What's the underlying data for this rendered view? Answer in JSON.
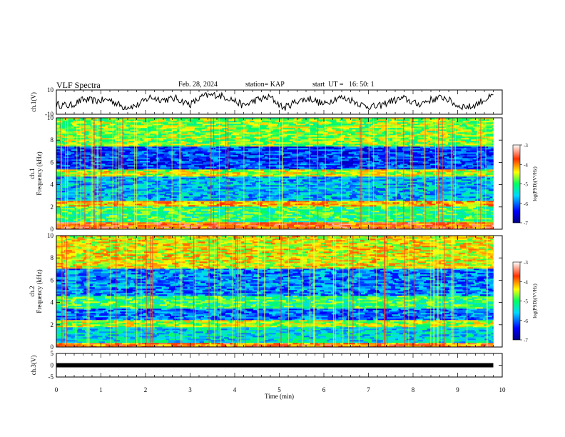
{
  "header": {
    "title": "VLF Spectra",
    "date": "Feb. 28, 2024",
    "station": "station= KAP",
    "start": "start  UT =   16: 50: 1"
  },
  "chart_data": [
    {
      "id": "ch1-waveform",
      "type": "line",
      "ylabel": "ch.1(V)",
      "ylim": [
        -10,
        10
      ],
      "yticks": [
        "10",
        "-10"
      ],
      "x_range_min": [
        0,
        9.8
      ],
      "trace_color": "#000000",
      "note_values_approx": true,
      "series": [
        {
          "x": [
            0,
            0.3,
            0.6,
            0.9,
            1.2,
            1.5,
            1.8,
            2.1,
            2.4,
            2.7,
            3.0,
            3.3,
            3.6,
            3.9,
            4.2,
            4.5,
            4.8,
            5.1,
            5.4,
            5.7,
            6.0,
            6.3,
            6.6,
            6.9,
            7.2,
            7.5,
            7.8,
            8.1,
            8.4,
            8.7,
            9.0,
            9.3,
            9.6,
            9.8
          ],
          "values": [
            -2,
            -3,
            2,
            1,
            2,
            -4,
            -3,
            4,
            2,
            3,
            -2,
            5,
            6,
            3,
            -3,
            2,
            4,
            -5,
            1,
            3,
            -2,
            4,
            2,
            -3,
            -4,
            1,
            3,
            -2,
            2,
            4,
            -3,
            -4,
            2,
            5
          ]
        }
      ]
    },
    {
      "id": "ch1-spectrogram",
      "type": "heatmap",
      "ylabel": "ch.1\nFrequency (kHz)",
      "ylim": [
        0,
        10
      ],
      "yticks": [
        "0",
        "2",
        "4",
        "6",
        "8",
        "10"
      ],
      "colorbar": {
        "label": "log(PSD)(V²/Hz)",
        "range": [
          -7,
          -3
        ],
        "ticks": [
          "-3",
          "-4",
          "-5",
          "-6",
          "-7"
        ]
      },
      "description_rows_kHz": {
        "bands": [
          {
            "from": 0.0,
            "to": 0.6,
            "level": -3.8
          },
          {
            "from": 0.6,
            "to": 2.0,
            "level": -5.0
          },
          {
            "from": 2.0,
            "to": 2.6,
            "level": -4.2
          },
          {
            "from": 2.6,
            "to": 4.8,
            "level": -5.7
          },
          {
            "from": 4.8,
            "to": 5.4,
            "level": -4.5
          },
          {
            "from": 5.4,
            "to": 7.5,
            "level": -6.2
          },
          {
            "from": 7.5,
            "to": 10.0,
            "level": -4.7
          }
        ]
      }
    },
    {
      "id": "ch2-spectrogram",
      "type": "heatmap",
      "ylabel": "ch.2\nFrequency (kHz)",
      "ylim": [
        0,
        10
      ],
      "yticks": [
        "0",
        "2",
        "4",
        "6",
        "8",
        "10"
      ],
      "colorbar": {
        "label": "log(PSD)(V²/Hz)",
        "range": [
          -7,
          -3
        ],
        "ticks": [
          "-3",
          "-4",
          "-5",
          "-6",
          "-7"
        ]
      },
      "description_rows_kHz": {
        "bands": [
          {
            "from": 0.0,
            "to": 0.4,
            "level": -3.9
          },
          {
            "from": 0.4,
            "to": 1.8,
            "level": -5.5
          },
          {
            "from": 1.8,
            "to": 2.4,
            "level": -4.6
          },
          {
            "from": 2.4,
            "to": 3.4,
            "level": -6.0
          },
          {
            "from": 3.4,
            "to": 4.6,
            "level": -5.0
          },
          {
            "from": 4.6,
            "to": 7.0,
            "level": -5.9
          },
          {
            "from": 7.0,
            "to": 10.0,
            "level": -4.4
          }
        ]
      }
    },
    {
      "id": "ch3-waveform",
      "type": "line",
      "ylabel": "ch.3(V)",
      "ylim": [
        -5,
        5
      ],
      "yticks": [
        "5",
        "0",
        "-5"
      ],
      "trace_color": "#000000",
      "series": [
        {
          "x": [
            0,
            9.8
          ],
          "values": [
            0,
            0
          ]
        }
      ]
    }
  ],
  "xaxis": {
    "label": "Time  (min)",
    "range": [
      0,
      10
    ],
    "ticks": [
      "0",
      "1",
      "2",
      "3",
      "4",
      "5",
      "6",
      "7",
      "8",
      "9",
      "10"
    ]
  }
}
